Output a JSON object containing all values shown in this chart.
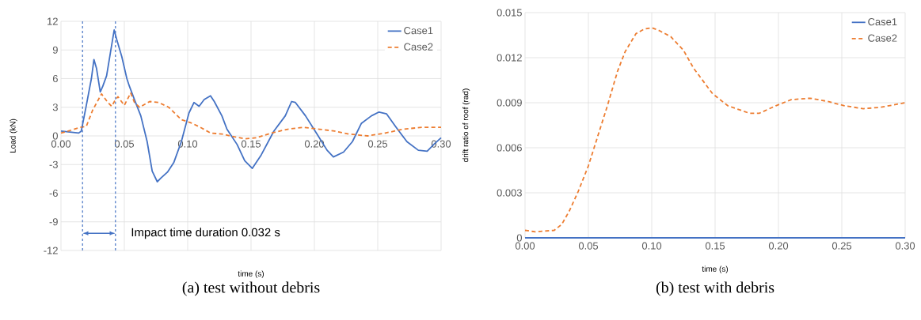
{
  "chart_data": [
    {
      "type": "line",
      "title": "(a) test without debris",
      "xlabel": "time (s)",
      "ylabel": "Load (kN)",
      "xlim": [
        0,
        0.3
      ],
      "ylim": [
        -12,
        12
      ],
      "xticks": [
        {
          "value": 0,
          "label": "0.00"
        },
        {
          "value": 0.05,
          "label": "0.05"
        },
        {
          "value": 0.1,
          "label": "0.10"
        },
        {
          "value": 0.15,
          "label": "0.15"
        },
        {
          "value": 0.2,
          "label": "0.20"
        },
        {
          "value": 0.25,
          "label": "0.25"
        },
        {
          "value": 0.3,
          "label": "0.30"
        }
      ],
      "yticks": [
        -12,
        -9,
        -6,
        -3,
        0,
        3,
        6,
        9,
        12
      ],
      "grid": true,
      "legend": "top right",
      "annotations": [
        "Impact time duration 0.032 s"
      ],
      "ref_lines": [
        {
          "axis": "x",
          "value": 0.017,
          "color": "#4472c4",
          "line_style": "dashed"
        },
        {
          "axis": "x",
          "value": 0.043,
          "color": "#4472c4",
          "line_style": "dashed"
        }
      ],
      "series": [
        {
          "name": "Case1",
          "color": "#4472c4",
          "line_style": "solid",
          "x": [
            0,
            0.014,
            0.016,
            0.02,
            0.024,
            0.026,
            0.028,
            0.031,
            0.033,
            0.036,
            0.039,
            0.042,
            0.044,
            0.048,
            0.052,
            0.054,
            0.058,
            0.063,
            0.068,
            0.072,
            0.076,
            0.079,
            0.084,
            0.089,
            0.095,
            0.101,
            0.105,
            0.109,
            0.113,
            0.118,
            0.121,
            0.127,
            0.131,
            0.139,
            0.145,
            0.151,
            0.158,
            0.168,
            0.177,
            0.182,
            0.185,
            0.193,
            0.202,
            0.21,
            0.215,
            0.223,
            0.23,
            0.237,
            0.245,
            0.251,
            0.257,
            0.264,
            0.273,
            0.282,
            0.289,
            0.295,
            0.3
          ],
          "values": [
            0.5,
            0.3,
            0.5,
            3.2,
            6.0,
            8.0,
            7.1,
            4.6,
            5.2,
            6.3,
            8.7,
            11.1,
            10.1,
            8.3,
            6.0,
            5.2,
            3.8,
            2.1,
            -0.6,
            -3.7,
            -4.8,
            -4.4,
            -3.8,
            -2.8,
            -0.6,
            2.4,
            3.5,
            3.1,
            3.8,
            4.2,
            3.6,
            2.1,
            0.7,
            -0.9,
            -2.6,
            -3.4,
            -2.0,
            0.5,
            2.1,
            3.6,
            3.5,
            2.1,
            0.2,
            -1.5,
            -2.2,
            -1.7,
            -0.6,
            1.3,
            2.1,
            2.5,
            2.3,
            1.0,
            -0.6,
            -1.5,
            -1.6,
            -0.8,
            -0.2
          ]
        },
        {
          "name": "Case2",
          "color": "#ed7d31",
          "line_style": "dashed",
          "x": [
            0,
            0.008,
            0.015,
            0.02,
            0.025,
            0.032,
            0.037,
            0.04,
            0.043,
            0.045,
            0.05,
            0.055,
            0.058,
            0.062,
            0.07,
            0.077,
            0.085,
            0.095,
            0.102,
            0.11,
            0.118,
            0.127,
            0.137,
            0.145,
            0.154,
            0.166,
            0.179,
            0.191,
            0.204,
            0.216,
            0.227,
            0.242,
            0.256,
            0.27,
            0.285,
            0.3
          ],
          "values": [
            0.3,
            0.6,
            0.9,
            1.0,
            2.7,
            4.4,
            3.5,
            3.1,
            3.8,
            4.1,
            3.2,
            4.5,
            3.5,
            3.0,
            3.6,
            3.5,
            3.0,
            1.7,
            1.4,
            0.9,
            0.3,
            0.2,
            -0.1,
            -0.3,
            -0.2,
            0.3,
            0.7,
            0.9,
            0.7,
            0.5,
            0.2,
            0.0,
            0.3,
            0.7,
            0.9,
            0.9
          ]
        }
      ]
    },
    {
      "type": "line",
      "title": "(b) test with debris",
      "xlabel": "time (s)",
      "ylabel": "drift ratio of roof  (rad)",
      "xlim": [
        0,
        0.3
      ],
      "ylim": [
        0,
        0.015
      ],
      "xticks": [
        {
          "value": 0,
          "label": "0.00"
        },
        {
          "value": 0.05,
          "label": "0.05"
        },
        {
          "value": 0.1,
          "label": "0.10"
        },
        {
          "value": 0.15,
          "label": "0.15"
        },
        {
          "value": 0.2,
          "label": "0.20"
        },
        {
          "value": 0.25,
          "label": "0.25"
        },
        {
          "value": 0.3,
          "label": "0.30"
        }
      ],
      "yticks": [
        0,
        0.003,
        0.006,
        0.009,
        0.012,
        0.015
      ],
      "grid": true,
      "legend": "top right",
      "series": [
        {
          "name": "Case1",
          "color": "#4472c4",
          "line_style": "solid",
          "x": [
            0,
            0.1,
            0.2,
            0.3
          ],
          "values": [
            0,
            0,
            0,
            0
          ]
        },
        {
          "name": "Case2",
          "color": "#ed7d31",
          "line_style": "dashed",
          "x": [
            0,
            0.008,
            0.023,
            0.029,
            0.035,
            0.042,
            0.05,
            0.056,
            0.065,
            0.073,
            0.079,
            0.0875,
            0.094,
            0.1,
            0.106,
            0.115,
            0.125,
            0.133,
            0.148,
            0.16,
            0.177,
            0.185,
            0.198,
            0.21,
            0.225,
            0.238,
            0.252,
            0.267,
            0.281,
            0.3
          ],
          "values": [
            0.0005,
            0.0004,
            0.0005,
            0.0009,
            0.0018,
            0.0031,
            0.0048,
            0.0064,
            0.0088,
            0.0111,
            0.0124,
            0.0136,
            0.0139,
            0.014,
            0.0138,
            0.0134,
            0.0125,
            0.0113,
            0.0096,
            0.0088,
            0.0083,
            0.0083,
            0.0088,
            0.0092,
            0.0093,
            0.0091,
            0.0088,
            0.0086,
            0.0087,
            0.009
          ]
        }
      ]
    }
  ]
}
